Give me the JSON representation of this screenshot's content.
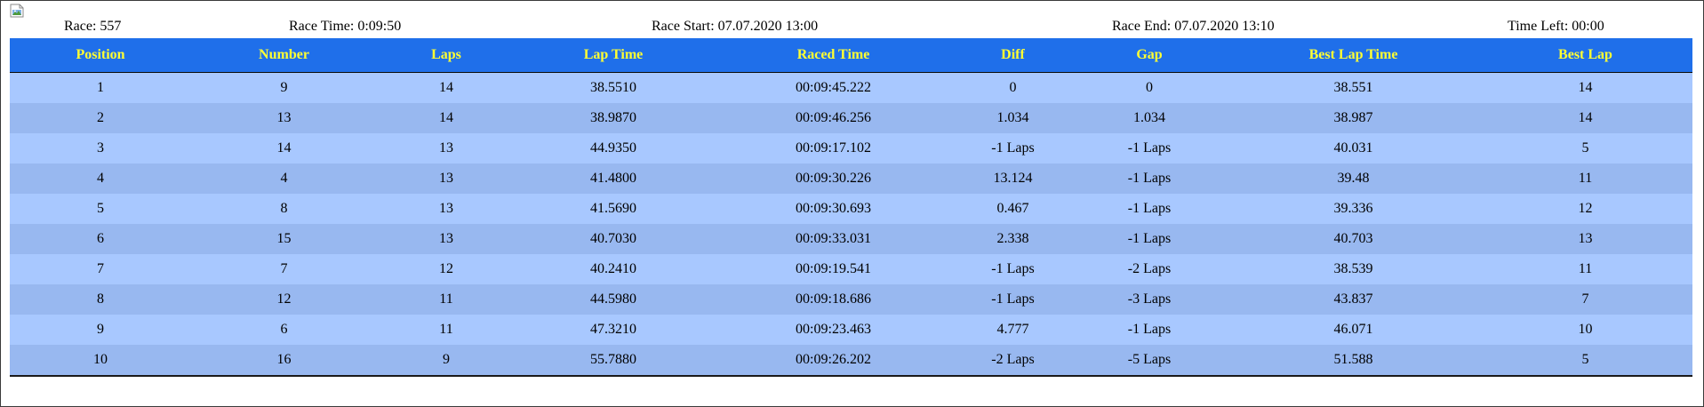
{
  "header": {
    "image_icon": "broken-image-icon",
    "race": "Race: 557",
    "race_time": "Race Time: 0:09:50",
    "race_start": "Race Start: 07.07.2020 13:00",
    "race_end": "Race End: 07.07.2020 13:10",
    "time_left": "Time Left: 00:00"
  },
  "colors": {
    "header_bg": "#1f6fea",
    "header_text": "#ffff33",
    "row_light": "#a8c8ff",
    "row_dark": "#98b8f0"
  },
  "table": {
    "columns": [
      "Position",
      "Number",
      "Laps",
      "Lap Time",
      "Raced Time",
      "Diff",
      "Gap",
      "Best Lap Time",
      "Best Lap"
    ],
    "rows": [
      [
        "1",
        "9",
        "14",
        "38.5510",
        "00:09:45.222",
        "0",
        "0",
        "38.551",
        "14"
      ],
      [
        "2",
        "13",
        "14",
        "38.9870",
        "00:09:46.256",
        "1.034",
        "1.034",
        "38.987",
        "14"
      ],
      [
        "3",
        "14",
        "13",
        "44.9350",
        "00:09:17.102",
        "-1 Laps",
        "-1 Laps",
        "40.031",
        "5"
      ],
      [
        "4",
        "4",
        "13",
        "41.4800",
        "00:09:30.226",
        "13.124",
        "-1 Laps",
        "39.48",
        "11"
      ],
      [
        "5",
        "8",
        "13",
        "41.5690",
        "00:09:30.693",
        "0.467",
        "-1 Laps",
        "39.336",
        "12"
      ],
      [
        "6",
        "15",
        "13",
        "40.7030",
        "00:09:33.031",
        "2.338",
        "-1 Laps",
        "40.703",
        "13"
      ],
      [
        "7",
        "7",
        "12",
        "40.2410",
        "00:09:19.541",
        "-1 Laps",
        "-2 Laps",
        "38.539",
        "11"
      ],
      [
        "8",
        "12",
        "11",
        "44.5980",
        "00:09:18.686",
        "-1 Laps",
        "-3 Laps",
        "43.837",
        "7"
      ],
      [
        "9",
        "6",
        "11",
        "47.3210",
        "00:09:23.463",
        "4.777",
        "-1 Laps",
        "46.071",
        "10"
      ],
      [
        "10",
        "16",
        "9",
        "55.7880",
        "00:09:26.202",
        "-2 Laps",
        "-5 Laps",
        "51.588",
        "5"
      ]
    ]
  }
}
